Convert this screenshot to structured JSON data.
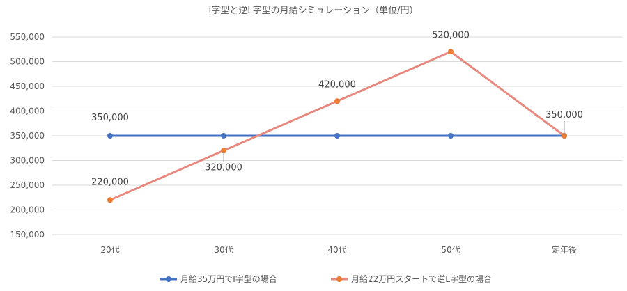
{
  "chart_data": {
    "type": "line",
    "title": "I字型と逆L字型の月給シミュレーション（単位/円）",
    "categories": [
      "20代",
      "30代",
      "40代",
      "50代",
      "定年後"
    ],
    "ylim": [
      150000,
      550000
    ],
    "ytick_step": 50000,
    "yticks": [
      "150,000",
      "200,000",
      "250,000",
      "300,000",
      "350,000",
      "400,000",
      "450,000",
      "500,000",
      "550,000"
    ],
    "grid": true,
    "legend_position": "bottom",
    "series": [
      {
        "name": "月給35万円でI字型の場合",
        "color": "#4472c4",
        "values": [
          350000,
          350000,
          350000,
          350000,
          350000
        ],
        "data_labels": [
          "350,000",
          null,
          null,
          null,
          null
        ]
      },
      {
        "name": "月給22万円スタートで逆L字型の場合",
        "color": "#e8897f",
        "marker_color": "#ed7d31",
        "values": [
          220000,
          320000,
          420000,
          520000,
          350000
        ],
        "data_labels": [
          "220,000",
          "320,000",
          "420,000",
          "520,000",
          "350,000"
        ]
      }
    ]
  }
}
